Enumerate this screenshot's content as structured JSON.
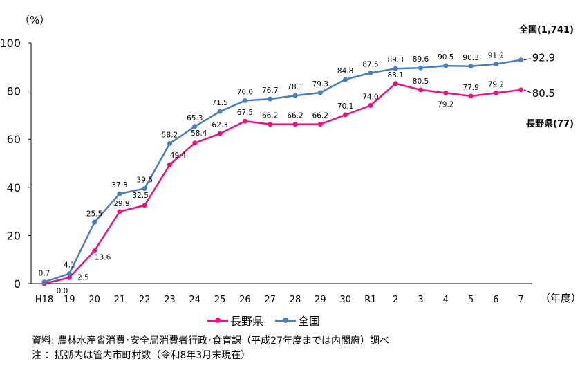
{
  "chart_data": {
    "type": "line",
    "y_unit_label": "（%）",
    "x_unit_label": "（年度）",
    "ylim": [
      0,
      100
    ],
    "yticks": [
      0,
      20,
      40,
      60,
      80,
      100
    ],
    "grid": false,
    "legend_placement": "bottom-center",
    "categories": [
      "H18",
      "19",
      "20",
      "21",
      "22",
      "23",
      "24",
      "25",
      "26",
      "27",
      "28",
      "29",
      "30",
      "R1",
      "2",
      "3",
      "4",
      "5",
      "6",
      "7"
    ],
    "series": [
      {
        "name": "長野県",
        "color": "#e8147d",
        "values": [
          0.0,
          2.5,
          13.6,
          29.9,
          32.5,
          49.4,
          58.4,
          62.3,
          67.5,
          66.2,
          66.2,
          66.2,
          70.1,
          74.0,
          83.1,
          80.5,
          79.2,
          77.9,
          79.2,
          80.5
        ],
        "end_label": "80.5",
        "annotation": "長野県(77)"
      },
      {
        "name": "全国",
        "color": "#4a7ebb",
        "values": [
          0.7,
          4.1,
          25.5,
          37.3,
          39.5,
          58.2,
          65.3,
          71.5,
          76.0,
          76.7,
          78.1,
          79.3,
          84.8,
          87.5,
          89.3,
          89.6,
          90.5,
          90.3,
          91.2,
          92.9
        ],
        "end_label": "92.9",
        "annotation": "全国(1,741)"
      }
    ]
  },
  "source_note": "資料: 農林水産省消費･安全局消費者行政･食育課（平成27年度までは内閣府）調べ",
  "footnote": " 注 ：括弧内は管内市町村数（令和8年3月末現在）"
}
